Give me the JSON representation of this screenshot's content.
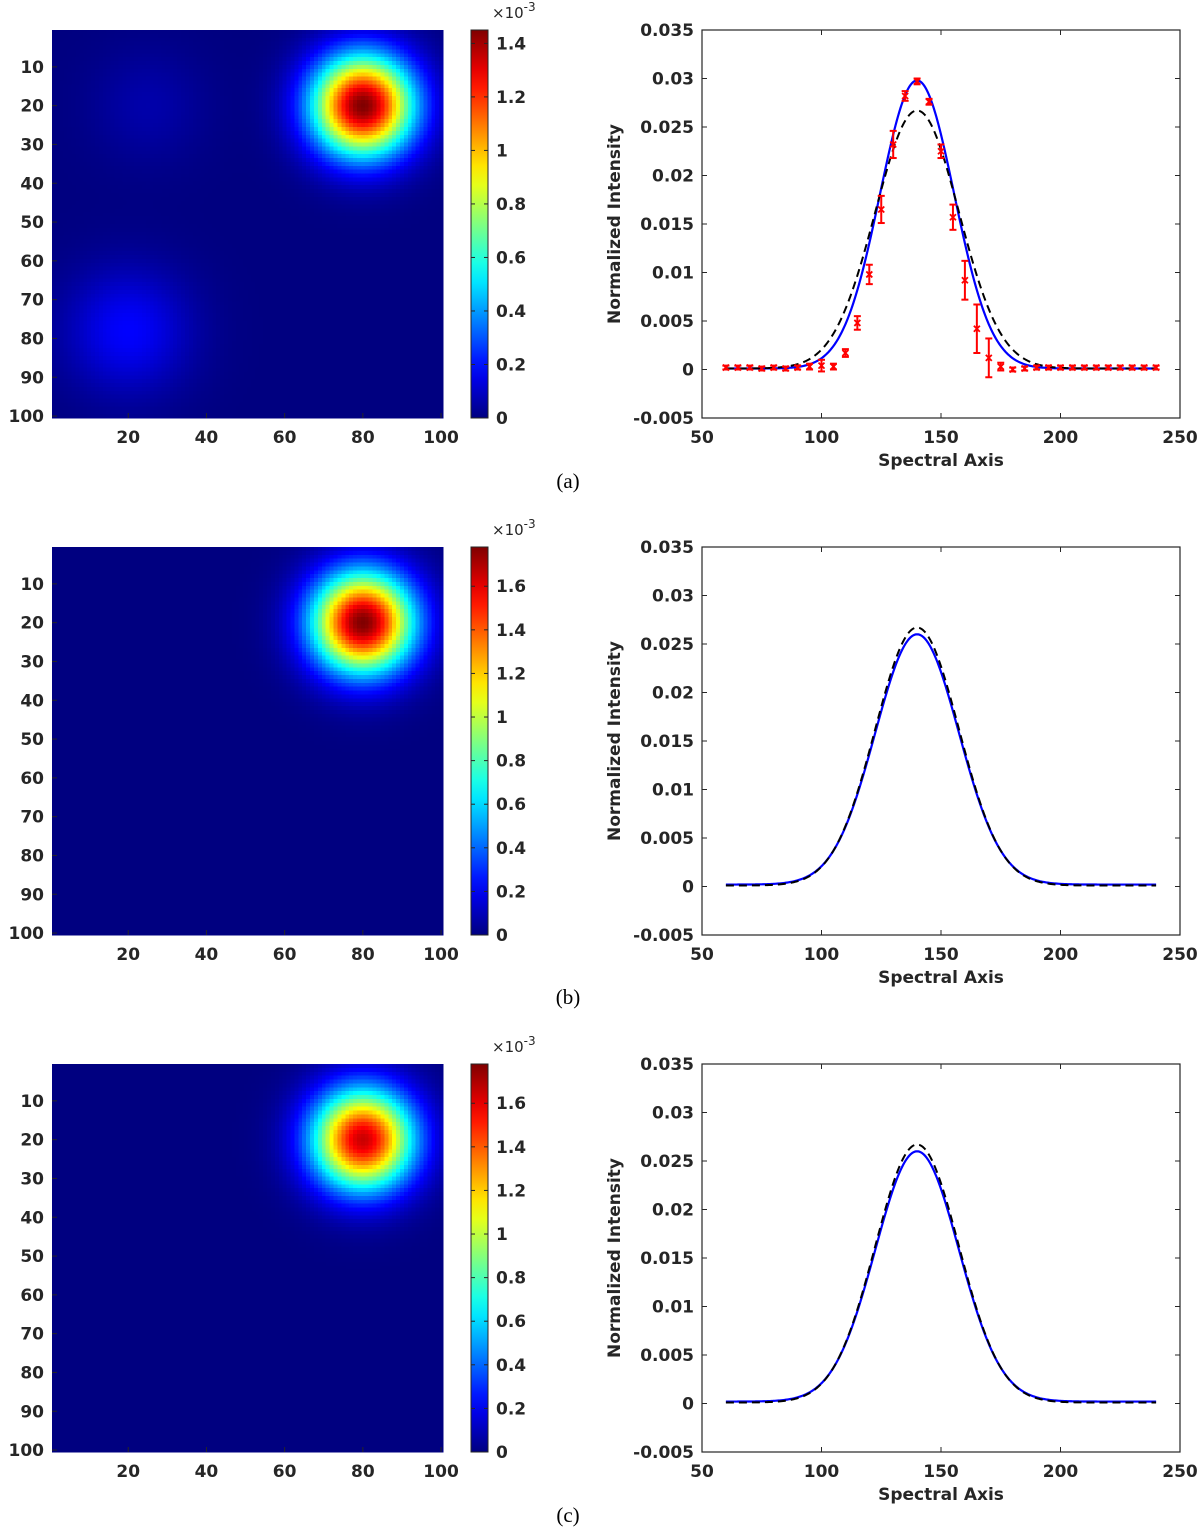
{
  "panels": [
    {
      "caption": "(a)",
      "heatmap": {
        "x_ticks": [
          20,
          40,
          60,
          80,
          100
        ],
        "y_ticks": [
          10,
          20,
          30,
          40,
          50,
          60,
          70,
          80,
          90,
          100
        ],
        "colorbar_multiplier": "×10",
        "colorbar_exponent": "-3",
        "colorbar_ticks": [
          "0",
          "0.2",
          "0.4",
          "0.6",
          "0.8",
          "1",
          "1.2",
          "1.4"
        ],
        "colorbar_max": 1.45
      },
      "spectrum": {
        "xlabel": "Spectral Axis",
        "ylabel": "Normalized Intensity",
        "x_ticks": [
          "50",
          "100",
          "150",
          "200",
          "250"
        ],
        "y_ticks": [
          "0.035",
          "0.03",
          "0.025",
          "0.02",
          "0.015",
          "0.01",
          "0.005",
          "0",
          "-0.005"
        ]
      }
    },
    {
      "caption": "(b)",
      "heatmap": {
        "x_ticks": [
          20,
          40,
          60,
          80,
          100
        ],
        "y_ticks": [
          10,
          20,
          30,
          40,
          50,
          60,
          70,
          80,
          90,
          100
        ],
        "colorbar_multiplier": "×10",
        "colorbar_exponent": "-3",
        "colorbar_ticks": [
          "0",
          "0.2",
          "0.4",
          "0.6",
          "0.8",
          "1",
          "1.2",
          "1.4",
          "1.6"
        ],
        "colorbar_max": 1.78
      },
      "spectrum": {
        "xlabel": "Spectral Axis",
        "ylabel": "Normalized Intensity",
        "x_ticks": [
          "50",
          "100",
          "150",
          "200",
          "250"
        ],
        "y_ticks": [
          "0.035",
          "0.03",
          "0.025",
          "0.02",
          "0.015",
          "0.01",
          "0.005",
          "0",
          "-0.005"
        ]
      }
    },
    {
      "caption": "(c)",
      "heatmap": {
        "x_ticks": [
          20,
          40,
          60,
          80,
          100
        ],
        "y_ticks": [
          10,
          20,
          30,
          40,
          50,
          60,
          70,
          80,
          90,
          100
        ],
        "colorbar_multiplier": "×10",
        "colorbar_exponent": "-3",
        "colorbar_ticks": [
          "0",
          "0.2",
          "0.4",
          "0.6",
          "0.8",
          "1",
          "1.2",
          "1.4",
          "1.6"
        ],
        "colorbar_max": 1.78
      },
      "spectrum": {
        "xlabel": "Spectral Axis",
        "ylabel": "Normalized Intensity",
        "x_ticks": [
          "50",
          "100",
          "150",
          "200",
          "250"
        ],
        "y_ticks": [
          "0.035",
          "0.03",
          "0.025",
          "0.02",
          "0.015",
          "0.01",
          "0.005",
          "0",
          "-0.005"
        ]
      }
    }
  ],
  "chart_data": [
    {
      "type": "heatmap",
      "panel": "(a)",
      "x_range": [
        1,
        100
      ],
      "y_range": [
        1,
        100
      ],
      "y_reversed": true,
      "colormap": "jet",
      "color_range": [
        0,
        0.00145
      ],
      "sources": [
        {
          "x": 80,
          "y": 20,
          "peak": 0.00145,
          "sigma": 9
        },
        {
          "x": 20,
          "y": 78,
          "peak": 0.00018,
          "sigma": 11
        },
        {
          "x": 25,
          "y": 20,
          "peak": 6e-05,
          "sigma": 10
        }
      ]
    },
    {
      "type": "line",
      "panel": "(a)",
      "xlim": [
        50,
        250
      ],
      "ylim": [
        -0.005,
        0.035
      ],
      "grid": false,
      "series": [
        {
          "color": "#0000ff",
          "style": "solid",
          "peak_x": 140,
          "peak_y": 0.0298,
          "width": 15.5,
          "x_range": [
            60,
            240
          ],
          "baseline": 0.0001
        },
        {
          "color": "#000000",
          "style": "dashed",
          "peak_x": 140,
          "peak_y": 0.0267,
          "width": 17.5,
          "x_range": [
            60,
            240
          ],
          "baseline": 0.0001
        },
        {
          "color": "#ff0000",
          "style": "errorbar",
          "points": [
            [
              60,
              0.0002,
              0.0002
            ],
            [
              65,
              0.0002,
              0.0002
            ],
            [
              70,
              0.0002,
              0.0002
            ],
            [
              75,
              0.0001,
              0.0002
            ],
            [
              80,
              0.0002,
              0.0002
            ],
            [
              85,
              0.0001,
              0.0002
            ],
            [
              90,
              0.0002,
              0.0002
            ],
            [
              95,
              0.0003,
              0.0003
            ],
            [
              100,
              0.0004,
              0.0006
            ],
            [
              105,
              0.0003,
              0.0003
            ],
            [
              110,
              0.0017,
              0.0004
            ],
            [
              115,
              0.0048,
              0.0007
            ],
            [
              120,
              0.0098,
              0.001
            ],
            [
              125,
              0.0165,
              0.0014
            ],
            [
              130,
              0.0232,
              0.0014
            ],
            [
              135,
              0.0282,
              0.0005
            ],
            [
              140,
              0.0297,
              0.0003
            ],
            [
              145,
              0.0276,
              0.0003
            ],
            [
              150,
              0.0225,
              0.0007
            ],
            [
              155,
              0.0157,
              0.0013
            ],
            [
              160,
              0.0092,
              0.002
            ],
            [
              165,
              0.0042,
              0.0025
            ],
            [
              170,
              0.0012,
              0.002
            ],
            [
              175,
              0.0003,
              0.0004
            ],
            [
              180,
              0.0,
              0.0002
            ],
            [
              185,
              0.0001,
              0.0002
            ],
            [
              190,
              0.0002,
              0.0002
            ],
            [
              195,
              0.0002,
              0.0002
            ],
            [
              200,
              0.0002,
              0.0002
            ],
            [
              205,
              0.0002,
              0.0002
            ],
            [
              210,
              0.0002,
              0.0002
            ],
            [
              215,
              0.0002,
              0.0002
            ],
            [
              220,
              0.0002,
              0.0002
            ],
            [
              225,
              0.0002,
              0.0002
            ],
            [
              230,
              0.0002,
              0.0002
            ],
            [
              235,
              0.0002,
              0.0002
            ],
            [
              240,
              0.0002,
              0.0002
            ]
          ]
        }
      ]
    },
    {
      "type": "heatmap",
      "panel": "(b)",
      "x_range": [
        1,
        100
      ],
      "y_range": [
        1,
        100
      ],
      "y_reversed": true,
      "colormap": "jet",
      "color_range": [
        0,
        0.00178
      ],
      "sources": [
        {
          "x": 80,
          "y": 20,
          "peak": 0.00178,
          "sigma": 9
        }
      ]
    },
    {
      "type": "line",
      "panel": "(b)",
      "xlim": [
        50,
        250
      ],
      "ylim": [
        -0.005,
        0.035
      ],
      "grid": false,
      "series": [
        {
          "color": "#0000ff",
          "style": "solid",
          "peak_x": 140,
          "peak_y": 0.026,
          "width": 17.5,
          "x_range": [
            60,
            240
          ],
          "baseline": 0.0002
        },
        {
          "color": "#000000",
          "style": "dashed",
          "peak_x": 140,
          "peak_y": 0.0267,
          "width": 17.5,
          "x_range": [
            60,
            240
          ],
          "baseline": 0.0001
        }
      ]
    },
    {
      "type": "heatmap",
      "panel": "(c)",
      "x_range": [
        1,
        100
      ],
      "y_range": [
        1,
        100
      ],
      "y_reversed": true,
      "colormap": "jet",
      "color_range": [
        0,
        0.00178
      ],
      "sources": [
        {
          "x": 80,
          "y": 20,
          "peak": 0.00165,
          "sigma": 9
        }
      ]
    },
    {
      "type": "line",
      "panel": "(c)",
      "xlim": [
        50,
        250
      ],
      "ylim": [
        -0.005,
        0.035
      ],
      "grid": false,
      "series": [
        {
          "color": "#0000ff",
          "style": "solid",
          "peak_x": 140,
          "peak_y": 0.026,
          "width": 17.5,
          "x_range": [
            60,
            240
          ],
          "baseline": 0.0002
        },
        {
          "color": "#000000",
          "style": "dashed",
          "peak_x": 140,
          "peak_y": 0.0267,
          "width": 17.5,
          "x_range": [
            60,
            240
          ],
          "baseline": 0.0001
        }
      ]
    }
  ]
}
